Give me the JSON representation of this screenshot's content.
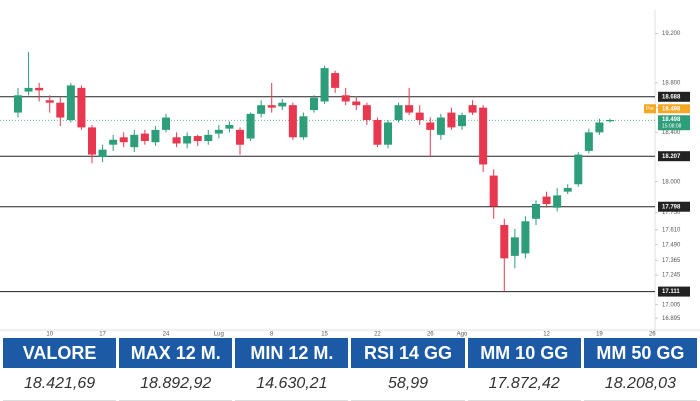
{
  "chart_data": {
    "type": "candlestick",
    "categories": [
      null,
      null,
      null,
      "10",
      null,
      null,
      null,
      null,
      "17",
      null,
      null,
      null,
      null,
      null,
      "24",
      null,
      null,
      null,
      null,
      "Lug",
      null,
      null,
      null,
      null,
      "8",
      null,
      null,
      null,
      null,
      "15",
      null,
      null,
      null,
      null,
      "22",
      null,
      null,
      null,
      null,
      "26",
      null,
      null,
      "Ago",
      null,
      null,
      null,
      null,
      null,
      null,
      null,
      "12",
      null,
      null,
      null,
      null,
      "19",
      null,
      null,
      null,
      null,
      "26"
    ],
    "open": [
      18560,
      18730,
      18760,
      18660,
      18640,
      18500,
      18760,
      18440,
      18200,
      18300,
      18360,
      18280,
      18390,
      18320,
      18420,
      18360,
      18310,
      18370,
      18330,
      18390,
      18430,
      18420,
      18350,
      18550,
      18620,
      18610,
      18620,
      18360,
      18580,
      18650,
      18880,
      18700,
      18650,
      18620,
      18500,
      18300,
      18500,
      18620,
      18560,
      18480,
      18380,
      18560,
      18450,
      18620,
      18600,
      18050,
      17650,
      17400,
      17420,
      17700,
      17880,
      17790,
      17920,
      17980,
      18250,
      18400,
      18490,
      null,
      null,
      null,
      null
    ],
    "high": [
      18760,
      19050,
      18800,
      18700,
      18680,
      18800,
      18780,
      18460,
      18300,
      18380,
      18400,
      18420,
      18420,
      18450,
      18550,
      18400,
      18400,
      18380,
      18420,
      18460,
      18490,
      18440,
      18560,
      18660,
      18800,
      18670,
      18640,
      18560,
      18700,
      18940,
      18900,
      18760,
      18690,
      18640,
      18520,
      18500,
      18640,
      18760,
      18620,
      18520,
      18550,
      18600,
      18560,
      18660,
      18620,
      18100,
      17700,
      17620,
      17720,
      17850,
      17920,
      17950,
      17980,
      18240,
      18430,
      18510,
      18510,
      null,
      null,
      null,
      null
    ],
    "low": [
      18520,
      18700,
      18650,
      18560,
      18450,
      18480,
      18420,
      18150,
      18160,
      18250,
      18280,
      18240,
      18300,
      18290,
      18400,
      18280,
      18270,
      18290,
      18300,
      18350,
      18400,
      18220,
      18330,
      18520,
      18560,
      18580,
      18340,
      18340,
      18560,
      18630,
      18720,
      18620,
      18580,
      18460,
      18280,
      18270,
      18480,
      18540,
      18460,
      18200,
      18340,
      18420,
      18420,
      18540,
      18080,
      17700,
      17110,
      17300,
      17380,
      17650,
      17790,
      17760,
      17900,
      17960,
      18230,
      18380,
      18480,
      null,
      null,
      null,
      null
    ],
    "close": [
      18700,
      18760,
      18740,
      18640,
      18520,
      18780,
      18440,
      18220,
      18260,
      18340,
      18320,
      18380,
      18330,
      18420,
      18520,
      18310,
      18370,
      18330,
      18380,
      18420,
      18460,
      18300,
      18550,
      18620,
      18600,
      18640,
      18360,
      18530,
      18680,
      18920,
      18760,
      18650,
      18620,
      18500,
      18300,
      18480,
      18620,
      18560,
      18500,
      18420,
      18520,
      18440,
      18540,
      18560,
      18140,
      17800,
      17380,
      17550,
      17680,
      17820,
      17820,
      17890,
      17950,
      18220,
      18400,
      18480,
      18500,
      null,
      null,
      null,
      null
    ],
    "up_color": "#2e9e7a",
    "down_color": "#e8384f",
    "ylim": [
      16800,
      19350
    ],
    "yticks": [
      {
        "value": 19200,
        "label": "19.200"
      },
      {
        "value": 18800,
        "label": "18.800"
      },
      {
        "value": 18600,
        "label": "18.600"
      },
      {
        "value": 18400,
        "label": "18.400"
      },
      {
        "value": 18000,
        "label": "18.000"
      },
      {
        "value": 17750,
        "label": "17.750"
      },
      {
        "value": 17610,
        "label": "17.610"
      },
      {
        "value": 17490,
        "label": "17.490"
      },
      {
        "value": 17365,
        "label": "17.365"
      },
      {
        "value": 17245,
        "label": "17.245"
      },
      {
        "value": 17005,
        "label": "17.005"
      },
      {
        "value": 16895,
        "label": "16.895"
      }
    ],
    "levels": [
      {
        "value": 18688,
        "label": "18.688"
      },
      {
        "value": 18207,
        "label": "18.207"
      },
      {
        "value": 17798,
        "label": "17.798"
      },
      {
        "value": 17111,
        "label": "17.111"
      }
    ],
    "price": {
      "value": 18498,
      "label": "18.498",
      "tag": "Pre",
      "time": "15:08:08"
    }
  },
  "table": {
    "headers": [
      "VALORE",
      "MAX 12 M.",
      "MIN 12 M.",
      "RSI 14 GG",
      "MM 10 GG",
      "MM 50 GG"
    ],
    "values": [
      "18.421,69",
      "18.892,92",
      "14.630,21",
      "58,99",
      "17.872,42",
      "18.208,03"
    ]
  }
}
